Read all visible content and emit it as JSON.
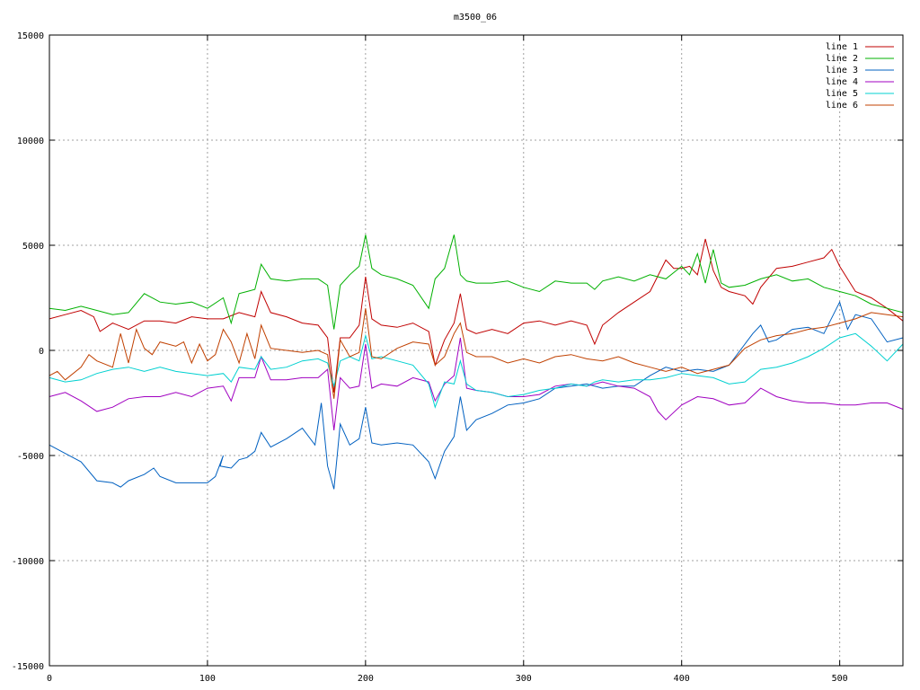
{
  "chart_data": {
    "type": "line",
    "title": "m3500_06",
    "xlabel": "",
    "ylabel": "",
    "xlim": [
      0,
      540
    ],
    "ylim": [
      -15000,
      15000
    ],
    "xticks": [
      0,
      100,
      200,
      300,
      400,
      500
    ],
    "yticks": [
      -15000,
      -10000,
      -5000,
      0,
      5000,
      10000,
      15000
    ],
    "grid": true,
    "legend_position": "top-right",
    "series": [
      {
        "name": "line 1",
        "color": "#c00000",
        "x": [
          0,
          10,
          20,
          28,
          32,
          40,
          50,
          60,
          70,
          80,
          90,
          100,
          110,
          120,
          130,
          134,
          140,
          150,
          160,
          170,
          176,
          180,
          184,
          190,
          196,
          200,
          204,
          210,
          220,
          230,
          240,
          244,
          250,
          256,
          260,
          264,
          270,
          280,
          290,
          300,
          310,
          320,
          330,
          340,
          345,
          350,
          360,
          370,
          380,
          390,
          395,
          400,
          405,
          410,
          415,
          420,
          425,
          430,
          440,
          445,
          450,
          460,
          470,
          480,
          490,
          495,
          500,
          510,
          520,
          530,
          540
        ],
        "y": [
          1500,
          1700,
          1900,
          1600,
          900,
          1300,
          1000,
          1400,
          1400,
          1300,
          1600,
          1500,
          1500,
          1800,
          1600,
          2800,
          1800,
          1600,
          1300,
          1200,
          600,
          -2000,
          600,
          600,
          1200,
          3500,
          1500,
          1200,
          1100,
          1300,
          900,
          -700,
          500,
          1300,
          2700,
          1000,
          800,
          1000,
          800,
          1300,
          1400,
          1200,
          1400,
          1200,
          300,
          1200,
          1800,
          2300,
          2800,
          4300,
          3900,
          3900,
          4000,
          3600,
          5300,
          3800,
          3000,
          2800,
          2600,
          2200,
          3000,
          3900,
          4000,
          4200,
          4400,
          4800,
          4000,
          2800,
          2500,
          2000,
          1400
        ]
      },
      {
        "name": "line 2",
        "color": "#00b000",
        "x": [
          0,
          10,
          20,
          30,
          40,
          50,
          60,
          70,
          80,
          90,
          100,
          110,
          115,
          120,
          125,
          130,
          134,
          140,
          150,
          160,
          170,
          176,
          180,
          184,
          190,
          196,
          200,
          204,
          210,
          220,
          230,
          240,
          244,
          250,
          256,
          260,
          264,
          270,
          280,
          290,
          300,
          310,
          320,
          330,
          340,
          345,
          350,
          360,
          370,
          380,
          390,
          400,
          405,
          410,
          415,
          420,
          425,
          430,
          440,
          450,
          460,
          470,
          480,
          490,
          500,
          510,
          520,
          530,
          540
        ],
        "y": [
          2000,
          1900,
          2100,
          1900,
          1700,
          1800,
          2700,
          2300,
          2200,
          2300,
          2000,
          2500,
          1300,
          2700,
          2800,
          2900,
          4100,
          3400,
          3300,
          3400,
          3400,
          3100,
          1000,
          3100,
          3600,
          4000,
          5500,
          3900,
          3600,
          3400,
          3100,
          2000,
          3400,
          3900,
          5500,
          3600,
          3300,
          3200,
          3200,
          3300,
          3000,
          2800,
          3300,
          3200,
          3200,
          2900,
          3300,
          3500,
          3300,
          3600,
          3400,
          4000,
          3600,
          4600,
          3200,
          4800,
          3200,
          3000,
          3100,
          3400,
          3600,
          3300,
          3400,
          3000,
          2800,
          2600,
          2200,
          2000,
          1800
        ]
      },
      {
        "name": "line 3",
        "color": "#0060c0",
        "x": [
          0,
          10,
          20,
          30,
          40,
          45,
          50,
          60,
          66,
          70,
          80,
          90,
          100,
          105,
          110,
          108,
          115,
          120,
          125,
          130,
          134,
          140,
          150,
          160,
          168,
          172,
          176,
          180,
          184,
          190,
          196,
          200,
          204,
          210,
          220,
          230,
          240,
          244,
          250,
          256,
          260,
          264,
          270,
          280,
          290,
          300,
          310,
          320,
          330,
          340,
          350,
          360,
          370,
          380,
          390,
          400,
          410,
          420,
          430,
          440,
          445,
          450,
          455,
          460,
          470,
          480,
          490,
          500,
          505,
          510,
          520,
          530,
          540
        ],
        "y": [
          -4500,
          -4900,
          -5300,
          -6200,
          -6300,
          -6500,
          -6200,
          -5900,
          -5600,
          -6000,
          -6300,
          -6300,
          -6300,
          -6000,
          -5000,
          -5500,
          -5600,
          -5200,
          -5100,
          -4800,
          -3900,
          -4600,
          -4200,
          -3700,
          -4500,
          -2500,
          -5500,
          -6600,
          -3500,
          -4500,
          -4200,
          -2700,
          -4400,
          -4500,
          -4400,
          -4500,
          -5300,
          -6100,
          -4800,
          -4100,
          -2200,
          -3800,
          -3300,
          -3000,
          -2600,
          -2500,
          -2300,
          -1800,
          -1700,
          -1600,
          -1800,
          -1700,
          -1700,
          -1200,
          -800,
          -1000,
          -900,
          -1000,
          -700,
          300,
          800,
          1200,
          400,
          500,
          1000,
          1100,
          800,
          2300,
          1000,
          1700,
          1500,
          400,
          600
        ]
      },
      {
        "name": "line 4",
        "color": "#a000c0",
        "x": [
          0,
          10,
          20,
          30,
          40,
          50,
          60,
          70,
          80,
          90,
          100,
          110,
          115,
          120,
          130,
          134,
          140,
          150,
          160,
          170,
          176,
          180,
          184,
          190,
          196,
          200,
          204,
          210,
          220,
          230,
          240,
          244,
          250,
          256,
          260,
          264,
          270,
          280,
          290,
          300,
          310,
          320,
          330,
          340,
          350,
          360,
          370,
          380,
          385,
          390,
          400,
          410,
          420,
          430,
          440,
          450,
          460,
          470,
          480,
          490,
          500,
          510,
          520,
          530,
          540
        ],
        "y": [
          -2200,
          -2000,
          -2400,
          -2900,
          -2700,
          -2300,
          -2200,
          -2200,
          -2000,
          -2200,
          -1800,
          -1700,
          -2400,
          -1300,
          -1300,
          -300,
          -1400,
          -1400,
          -1300,
          -1300,
          -900,
          -3800,
          -1300,
          -1800,
          -1700,
          300,
          -1800,
          -1600,
          -1700,
          -1300,
          -1500,
          -2400,
          -1600,
          -1200,
          600,
          -1800,
          -1900,
          -2000,
          -2200,
          -2200,
          -2100,
          -1700,
          -1600,
          -1700,
          -1500,
          -1700,
          -1800,
          -2200,
          -2900,
          -3300,
          -2600,
          -2200,
          -2300,
          -2600,
          -2500,
          -1800,
          -2200,
          -2400,
          -2500,
          -2500,
          -2600,
          -2600,
          -2500,
          -2500,
          -2800
        ]
      },
      {
        "name": "line 5",
        "color": "#00d0d0",
        "x": [
          0,
          10,
          20,
          30,
          40,
          50,
          60,
          70,
          80,
          90,
          100,
          110,
          115,
          120,
          130,
          134,
          140,
          150,
          160,
          170,
          176,
          180,
          184,
          190,
          196,
          200,
          204,
          210,
          220,
          230,
          240,
          244,
          250,
          256,
          260,
          264,
          270,
          280,
          290,
          300,
          310,
          320,
          330,
          340,
          345,
          350,
          360,
          370,
          380,
          390,
          400,
          410,
          420,
          430,
          440,
          450,
          460,
          470,
          480,
          490,
          500,
          510,
          520,
          530,
          540
        ],
        "y": [
          -1300,
          -1500,
          -1400,
          -1100,
          -900,
          -800,
          -1000,
          -800,
          -1000,
          -1100,
          -1200,
          -1100,
          -1500,
          -800,
          -900,
          -300,
          -900,
          -800,
          -500,
          -400,
          -600,
          -1700,
          -500,
          -300,
          -500,
          700,
          -400,
          -300,
          -500,
          -700,
          -1600,
          -2700,
          -1500,
          -1600,
          -500,
          -1600,
          -1900,
          -2000,
          -2200,
          -2100,
          -1900,
          -1800,
          -1600,
          -1700,
          -1500,
          -1400,
          -1500,
          -1400,
          -1400,
          -1300,
          -1100,
          -1200,
          -1300,
          -1600,
          -1500,
          -900,
          -800,
          -600,
          -300,
          100,
          600,
          800,
          200,
          -500,
          300
        ]
      },
      {
        "name": "line 6",
        "color": "#c04000",
        "x": [
          0,
          5,
          10,
          20,
          25,
          30,
          40,
          45,
          50,
          55,
          60,
          65,
          70,
          80,
          85,
          90,
          95,
          100,
          105,
          110,
          115,
          120,
          125,
          130,
          134,
          140,
          150,
          160,
          170,
          176,
          180,
          184,
          190,
          196,
          200,
          204,
          210,
          220,
          230,
          240,
          244,
          250,
          256,
          260,
          264,
          270,
          280,
          290,
          300,
          310,
          320,
          330,
          340,
          350,
          360,
          370,
          380,
          390,
          400,
          410,
          420,
          430,
          440,
          450,
          460,
          470,
          480,
          490,
          500,
          510,
          520,
          530,
          540
        ],
        "y": [
          -1200,
          -1000,
          -1400,
          -800,
          -200,
          -500,
          -800,
          800,
          -600,
          1000,
          100,
          -200,
          400,
          200,
          400,
          -600,
          300,
          -500,
          -200,
          1000,
          400,
          -600,
          800,
          -400,
          1200,
          100,
          0,
          -100,
          0,
          -200,
          -2300,
          500,
          -300,
          -100,
          2000,
          -300,
          -400,
          100,
          400,
          300,
          -700,
          -300,
          800,
          1300,
          -100,
          -300,
          -300,
          -600,
          -400,
          -600,
          -300,
          -200,
          -400,
          -500,
          -300,
          -600,
          -800,
          -1000,
          -800,
          -1100,
          -900,
          -700,
          100,
          500,
          700,
          800,
          1000,
          1100,
          1300,
          1500,
          1800,
          1700,
          1600
        ]
      }
    ]
  }
}
